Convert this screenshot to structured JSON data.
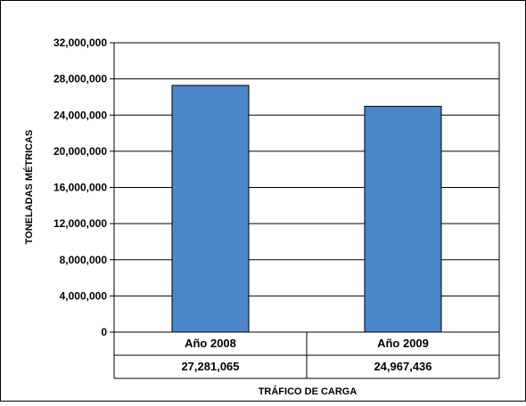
{
  "chart_data": {
    "type": "bar",
    "title": "",
    "xlabel": "TRÁFICO DE CARGA",
    "ylabel": "TONELADAS MÉTRICAS",
    "categories": [
      "Año 2008",
      "Año 2009"
    ],
    "values": [
      27281065,
      24967436
    ],
    "value_labels": [
      "27,281,065",
      "24,967,436"
    ],
    "ylim": [
      0,
      32000000
    ],
    "yticks": [
      0,
      4000000,
      8000000,
      12000000,
      16000000,
      20000000,
      24000000,
      28000000,
      32000000
    ],
    "ytick_labels": [
      "0",
      "4,000,000",
      "8,000,000",
      "12,000,000",
      "16,000,000",
      "20,000,000",
      "24,000,000",
      "28,000,000",
      "32,000,000"
    ],
    "grid": true,
    "legend": "none",
    "bar_color": "#4a86c8",
    "data_table": true
  }
}
